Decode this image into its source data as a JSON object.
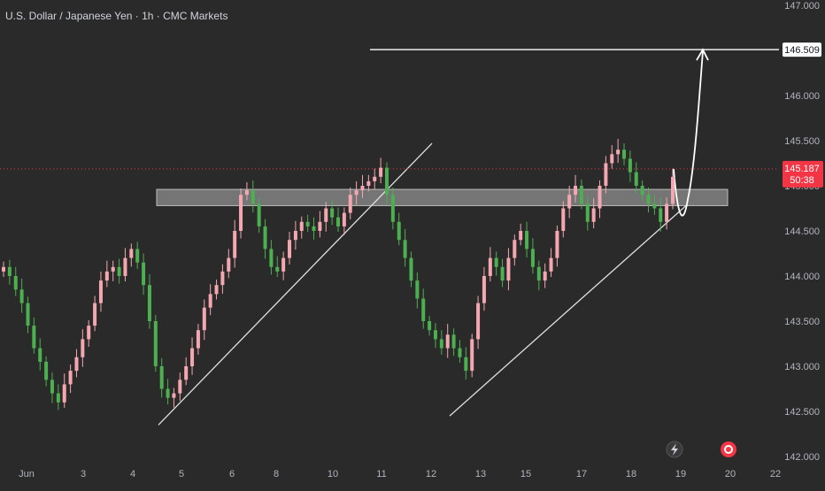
{
  "header": {
    "title": "U.S. Dollar / Japanese Yen · 1h · CMC Markets"
  },
  "colors": {
    "background": "#2a2a2a",
    "up_candle": "#f4a7b0",
    "down_candle": "#4caf50",
    "current_price_tag": "#f23645",
    "target_tag": "#ffffff",
    "zone": "#9e9e9e"
  },
  "chart_data": {
    "type": "candlestick",
    "title": "U.S. Dollar / Japanese Yen · 1h · CMC Markets",
    "ylim": [
      142.4,
      147.0
    ],
    "y_ticks": [
      "147.000",
      "146.500",
      "146.000",
      "145.500",
      "145.000",
      "144.500",
      "144.000",
      "143.500",
      "143.000",
      "142.500",
      "142.000"
    ],
    "x_ticks": [
      "Jun",
      "3",
      "4",
      "5",
      "6",
      "8",
      "10",
      "11",
      "12",
      "13",
      "15",
      "17",
      "18",
      "19",
      "20",
      "22"
    ],
    "last_price": "145.187",
    "countdown": "50:38",
    "target_price": "146.509",
    "resistance_zone": {
      "low": 144.78,
      "high": 144.96
    },
    "trendlines": [
      {
        "from": [
          "5",
          142.35
        ],
        "to": [
          "12",
          145.47
        ]
      },
      {
        "from": [
          "12",
          142.45
        ],
        "to": [
          "19",
          144.78
        ]
      }
    ],
    "series": [
      {
        "values": [
          144.1,
          144.0,
          143.85,
          143.7,
          143.45,
          143.2,
          143.05,
          142.85,
          142.7,
          142.6,
          142.8,
          142.95,
          143.1,
          143.3,
          143.45,
          143.7,
          143.95,
          144.05,
          144.1,
          144.0,
          144.2,
          144.3,
          144.15,
          143.9,
          143.5,
          143.0,
          142.75,
          142.65,
          142.7,
          142.85,
          143.0,
          143.2,
          143.4,
          143.65,
          143.8,
          143.9,
          144.05,
          144.2,
          144.5,
          144.9,
          144.95,
          144.8,
          144.55,
          144.3,
          144.1,
          144.05,
          144.2,
          144.4,
          144.5,
          144.6,
          144.55,
          144.5,
          144.6,
          144.75,
          144.65,
          144.55,
          144.7,
          144.9,
          144.95,
          145.0,
          145.05,
          145.1,
          145.2,
          144.9,
          144.6,
          144.4,
          144.2,
          143.95,
          143.75,
          143.5,
          143.4,
          143.3,
          143.2,
          143.35,
          143.2,
          143.1,
          142.95,
          143.3,
          143.7,
          144.0,
          144.2,
          144.1,
          143.95,
          144.2,
          144.4,
          144.5,
          144.3,
          144.1,
          143.95,
          144.05,
          144.2,
          144.5,
          144.75,
          144.9,
          145.0,
          144.8,
          144.6,
          144.75,
          145.0,
          145.25,
          145.35,
          145.4,
          145.3,
          145.15,
          145.0,
          144.9,
          144.8,
          144.75,
          144.6,
          144.8,
          145.1
        ]
      }
    ]
  },
  "toolbar": {
    "lightning_icon": "lightning-icon",
    "record_icon": "record-icon"
  }
}
